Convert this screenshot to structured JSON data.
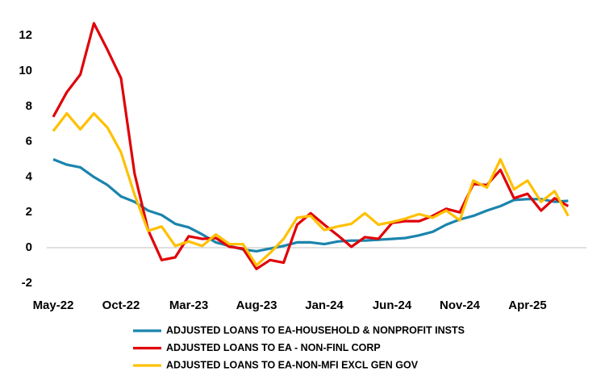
{
  "chart_data": {
    "type": "line",
    "categories": [
      "May-22",
      null,
      null,
      null,
      null,
      "Oct-22",
      null,
      null,
      null,
      null,
      "Mar-23",
      null,
      null,
      null,
      null,
      "Aug-23",
      null,
      null,
      null,
      null,
      "Jan-24",
      null,
      null,
      null,
      null,
      "Jun-24",
      null,
      null,
      null,
      null,
      "Nov-24",
      null,
      null,
      null,
      null,
      "Apr-25",
      null,
      null,
      null
    ],
    "series": [
      {
        "name": "ADJUSTED LOANS TO EA-HOUSEHOLD & NONPROFIT INSTS",
        "color": "#1b84ad",
        "values": [
          5.0,
          4.7,
          4.55,
          4.0,
          3.55,
          2.9,
          2.6,
          2.1,
          1.85,
          1.35,
          1.15,
          0.75,
          0.3,
          0.1,
          -0.1,
          -0.2,
          -0.05,
          0.1,
          0.3,
          0.3,
          0.2,
          0.35,
          0.4,
          0.4,
          0.45,
          0.5,
          0.55,
          0.7,
          0.9,
          1.3,
          1.6,
          1.8,
          2.1,
          2.35,
          2.7,
          2.75,
          2.75,
          2.6,
          2.65
        ]
      },
      {
        "name": "ADJUSTED LOANS TO EA - NON-FINL CORP",
        "color": "#e00008",
        "values": [
          7.4,
          8.8,
          9.8,
          12.7,
          11.2,
          9.6,
          4.2,
          1.0,
          -0.7,
          -0.55,
          0.65,
          0.5,
          0.55,
          0.05,
          -0.05,
          -1.2,
          -0.7,
          -0.85,
          1.3,
          1.95,
          1.3,
          0.7,
          0.05,
          0.6,
          0.5,
          1.4,
          1.5,
          1.5,
          1.8,
          2.2,
          2.0,
          3.6,
          3.55,
          4.4,
          2.8,
          3.05,
          2.1,
          2.8,
          2.35
        ]
      },
      {
        "name": "ADJUSTED LOANS TO EA-NON-MFI EXCL GEN GOV",
        "color": "#ffc000",
        "values": [
          6.6,
          7.6,
          6.7,
          7.6,
          6.8,
          5.4,
          3.0,
          0.95,
          1.2,
          0.1,
          0.35,
          0.1,
          0.75,
          0.2,
          0.2,
          -1.0,
          -0.3,
          0.5,
          1.7,
          1.8,
          1.0,
          1.2,
          1.35,
          1.95,
          1.3,
          1.45,
          1.65,
          1.9,
          1.7,
          2.1,
          1.55,
          3.8,
          3.4,
          5.0,
          3.3,
          3.8,
          2.6,
          3.2,
          1.8
        ]
      }
    ],
    "ylim": [
      -2,
      13
    ],
    "yticks": [
      -2,
      0,
      2,
      4,
      6,
      8,
      10,
      12
    ],
    "grid": false,
    "legend": "bottom"
  }
}
